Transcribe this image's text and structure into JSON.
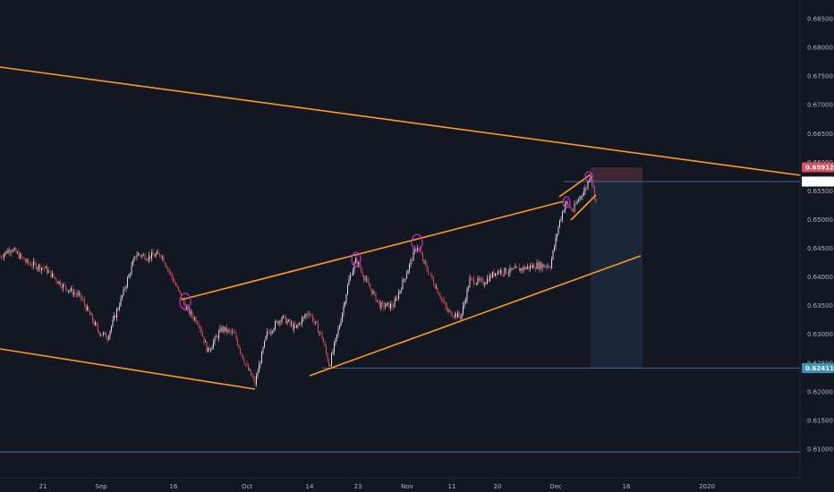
{
  "chart_data": {
    "type": "candlestick",
    "title": "",
    "xlabel": "",
    "ylabel": "",
    "x_ticks": [
      "21",
      "Sep",
      "16",
      "Oct",
      "14",
      "23",
      "Nov",
      "11",
      "20",
      "Dec",
      "16",
      "2020"
    ],
    "y_ticks": [
      "0.68500",
      "0.68000",
      "0.67500",
      "0.67000",
      "0.66500",
      "0.66000",
      "0.65500",
      "0.65000",
      "0.64500",
      "0.64000",
      "0.63500",
      "0.63000",
      "0.62500",
      "0.62000",
      "0.61500",
      "0.61000"
    ],
    "ylim": [
      0.6065,
      0.6875
    ],
    "grid": false,
    "price_tags": [
      {
        "label": "0.65912",
        "value": 0.65912,
        "color": "#d84f5f"
      },
      {
        "label": "0.65667",
        "value": 0.65667,
        "color": "#e5484d"
      },
      {
        "label": "0.65662",
        "value": 0.65662,
        "color": "#ffffff"
      },
      {
        "label": "0.62411",
        "value": 0.62411,
        "color": "#3b93b8"
      }
    ],
    "horizontal_lines": [
      {
        "value": 0.65662,
        "color": "#4a7fc1"
      },
      {
        "value": 0.62411,
        "color": "#4a7fc1"
      },
      {
        "value": 0.6095,
        "color": "#4a7fc1"
      }
    ],
    "position": {
      "entry": 0.65662,
      "stop": 0.65912,
      "target": 0.62411,
      "profit_color": "#1e2a3d",
      "loss_color": "#4a2a38"
    },
    "colors": {
      "background": "#131722",
      "trendline": "#ff9a1f",
      "up_candle": "#e0e0e0",
      "down_candle": "#d84f5f",
      "circle_marker": "#c42fd6",
      "axis_text": "#b2b5be"
    }
  }
}
